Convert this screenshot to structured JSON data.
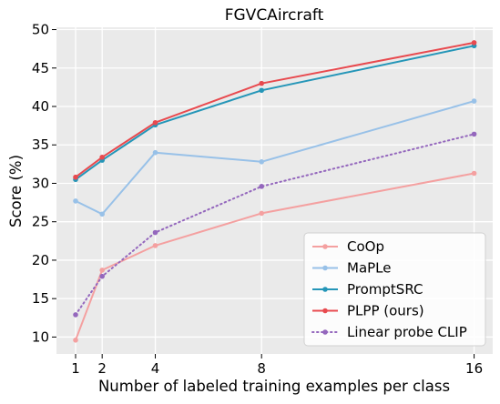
{
  "chart_data": {
    "type": "line",
    "title": "FGVCAircraft",
    "xlabel": "Number of labeled training examples per class",
    "ylabel": "Score (%)",
    "x": [
      1,
      2,
      4,
      8,
      16
    ],
    "xticks": [
      1,
      2,
      4,
      8,
      16
    ],
    "yticks": [
      10,
      15,
      20,
      25,
      30,
      35,
      40,
      45,
      50
    ],
    "xlim": [
      0.28,
      16.7
    ],
    "ylim": [
      7.8,
      50.3
    ],
    "grid": true,
    "legend_position": "lower-right",
    "series": [
      {
        "name": "CoOp",
        "values": [
          9.6,
          18.7,
          21.9,
          26.1,
          31.3
        ],
        "color": "#f4a0a0",
        "style": "solid"
      },
      {
        "name": "MaPLe",
        "values": [
          27.7,
          26.0,
          34.0,
          32.8,
          40.7
        ],
        "color": "#98c1e8",
        "style": "solid"
      },
      {
        "name": "PromptSRC",
        "values": [
          30.5,
          33.0,
          37.6,
          42.1,
          47.9
        ],
        "color": "#2596b8",
        "style": "solid"
      },
      {
        "name": "PLPP (ours)",
        "values": [
          30.8,
          33.4,
          37.9,
          43.0,
          48.3
        ],
        "color": "#e84a4f",
        "style": "solid"
      },
      {
        "name": "Linear probe CLIP",
        "values": [
          12.9,
          17.9,
          23.6,
          29.6,
          36.4
        ],
        "color": "#9467bd",
        "style": "dotted"
      }
    ]
  }
}
